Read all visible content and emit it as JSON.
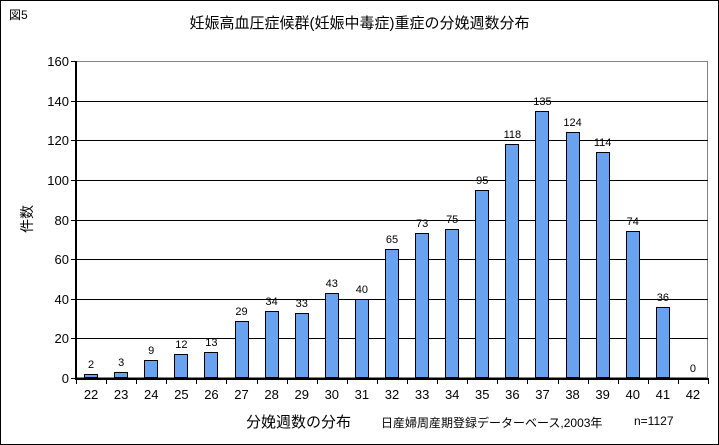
{
  "figure_label": "図5",
  "colors": {
    "bar_fill": "#69A3F0",
    "bar_border": "#000000",
    "gridline": "#000000",
    "plot_border": "#848284",
    "axis": "#000000",
    "background": "#FFFFFF",
    "text": "#000000"
  },
  "y_axis": {
    "label": "件数",
    "tick_labels": [
      "0",
      "20",
      "40",
      "60",
      "80",
      "100",
      "120",
      "140",
      "160"
    ]
  },
  "x_axis": {
    "tick_labels": [
      "22",
      "23",
      "24",
      "25",
      "26",
      "27",
      "28",
      "29",
      "30",
      "31",
      "32",
      "33",
      "34",
      "35",
      "36",
      "37",
      "38",
      "39",
      "40",
      "41",
      "42"
    ]
  },
  "chart_data": {
    "type": "bar",
    "title": "妊娠高血圧症候群(妊娠中毒症)重症の分娩週数分布",
    "categories": [
      22,
      23,
      24,
      25,
      26,
      27,
      28,
      29,
      30,
      31,
      32,
      33,
      34,
      35,
      36,
      37,
      38,
      39,
      40,
      41,
      42
    ],
    "values": [
      2,
      3,
      9,
      12,
      13,
      29,
      34,
      33,
      43,
      40,
      65,
      73,
      75,
      95,
      118,
      135,
      124,
      114,
      74,
      36,
      0
    ],
    "xlabel": "分娩週数の分布",
    "ylabel": "件数",
    "ylim": [
      0,
      160
    ],
    "ytick_step": 20,
    "grid": true,
    "legend": false,
    "data_labels": true,
    "annotations": [
      "日産婦周産期登録データーベース,2003年",
      "n=1127"
    ]
  }
}
